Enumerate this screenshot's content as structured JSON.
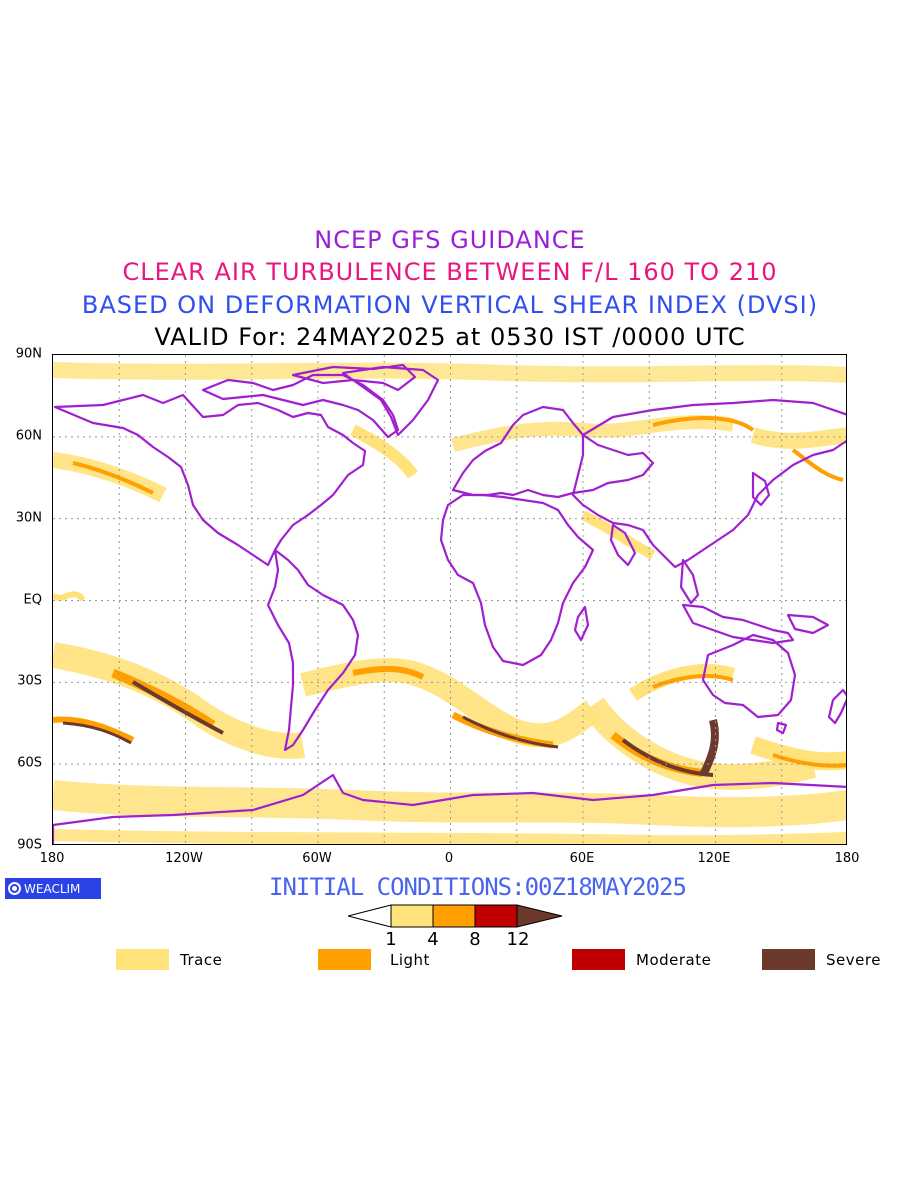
{
  "title": {
    "line1": "NCEP GFS GUIDANCE",
    "line2": "CLEAR AIR TURBULENCE BETWEEN F/L 160 TO 210",
    "line3": "BASED ON DEFORMATION VERTICAL SHEAR INDEX (DVSI)",
    "line4": "VALID For: 24MAY2025 at 0530 IST /0000 UTC"
  },
  "axes": {
    "lat_labels": [
      "90N",
      "60N",
      "30N",
      "EQ",
      "30S",
      "60S",
      "90S"
    ],
    "lon_labels": [
      "180",
      "120W",
      "60W",
      "0",
      "60E",
      "120E",
      "180"
    ]
  },
  "logo": {
    "text": "WEACLIM"
  },
  "initial_conditions": "INITIAL CONDITIONS:00Z18MAY2025",
  "colorbar": {
    "ticks": [
      "1",
      "4",
      "8",
      "12"
    ],
    "colors": [
      "#ffffff",
      "#ffe27a",
      "#ffa000",
      "#c00000",
      "#6b3a2c"
    ]
  },
  "legend": [
    {
      "label": "Trace",
      "color": "#ffe27a"
    },
    {
      "label": "Light",
      "color": "#ffa000"
    },
    {
      "label": "Moderate",
      "color": "#c00000"
    },
    {
      "label": "Severe",
      "color": "#6b3a2c"
    }
  ],
  "map_colors": {
    "coast": "#a020d0",
    "grid": "#999999"
  }
}
